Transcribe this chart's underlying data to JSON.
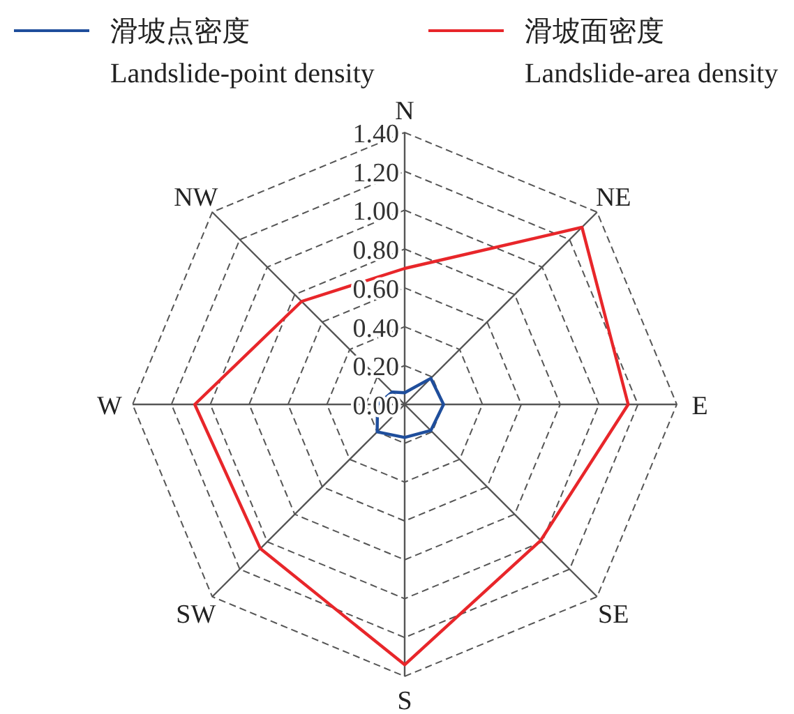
{
  "chart_data": {
    "type": "radar",
    "categories": [
      "N",
      "NE",
      "E",
      "SE",
      "S",
      "SW",
      "W",
      "NW"
    ],
    "ylim": [
      0,
      1.4
    ],
    "yticks": [
      {
        "value": 0,
        "label": "0.00"
      },
      {
        "value": 0.2,
        "label": "0.20"
      },
      {
        "value": 0.4,
        "label": "0.40"
      },
      {
        "value": 0.6,
        "label": "0.60"
      },
      {
        "value": 0.8,
        "label": "0.80"
      },
      {
        "value": 1.0,
        "label": "1.00"
      },
      {
        "value": 1.2,
        "label": "1.20"
      },
      {
        "value": 1.4,
        "label": "1.40"
      }
    ],
    "grid": true,
    "legend": "top",
    "marker": "none",
    "line_style": "solid",
    "series": [
      {
        "name": "滑坡点密度\nLandslide-point density",
        "color": "#1f4e9c",
        "values": [
          0.06,
          0.19,
          0.2,
          0.19,
          0.17,
          0.2,
          0.14,
          0.09
        ]
      },
      {
        "name": "滑坡面密度\nLandslide-area density",
        "color": "#e8262a",
        "values": [
          0.7,
          1.29,
          1.15,
          0.99,
          1.34,
          1.05,
          1.08,
          0.75
        ]
      }
    ]
  }
}
